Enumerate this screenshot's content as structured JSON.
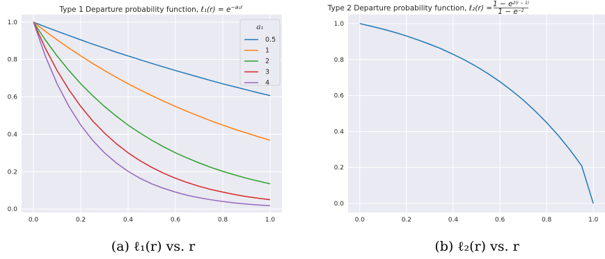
{
  "chart_data": [
    {
      "type": "line",
      "title": "Type 1 Departure probability function, ℓ₁(r) = e^(−a₁r)",
      "title_text": "Type 1 Departure probability function, ",
      "title_math": "ℓ₁(r) = e",
      "title_sup": "−a₁r",
      "xlabel": "",
      "ylabel": "",
      "xlim": [
        -0.05,
        1.05
      ],
      "ylim": [
        -0.018,
        1.04
      ],
      "xticks": [
        "0.0",
        "0.2",
        "0.4",
        "0.6",
        "0.8",
        "1.0"
      ],
      "yticks": [
        "0.0",
        "0.2",
        "0.4",
        "0.6",
        "0.8",
        "1.0"
      ],
      "grid": true,
      "legend": {
        "title": "a₁",
        "placement": "top-right"
      },
      "caption": "(a) ℓ₁(r) vs. r",
      "x": [
        0.0,
        0.05,
        0.1,
        0.15,
        0.2,
        0.25,
        0.3,
        0.35,
        0.4,
        0.45,
        0.5,
        0.55,
        0.6,
        0.65,
        0.7,
        0.75,
        0.8,
        0.85,
        0.9,
        0.95,
        1.0
      ],
      "series": [
        {
          "name": "0.5",
          "color": "#1f77b4",
          "values": [
            1.0,
            0.975,
            0.951,
            0.928,
            0.905,
            0.882,
            0.861,
            0.839,
            0.819,
            0.799,
            0.779,
            0.76,
            0.741,
            0.723,
            0.705,
            0.687,
            0.67,
            0.654,
            0.638,
            0.622,
            0.607
          ]
        },
        {
          "name": "1",
          "color": "#ff7f0e",
          "values": [
            1.0,
            0.951,
            0.905,
            0.861,
            0.819,
            0.779,
            0.741,
            0.705,
            0.67,
            0.638,
            0.607,
            0.577,
            0.549,
            0.522,
            0.497,
            0.472,
            0.449,
            0.427,
            0.407,
            0.387,
            0.368
          ]
        },
        {
          "name": "2",
          "color": "#2ca02c",
          "values": [
            1.0,
            0.905,
            0.819,
            0.741,
            0.67,
            0.607,
            0.549,
            0.497,
            0.449,
            0.407,
            0.368,
            0.333,
            0.301,
            0.273,
            0.247,
            0.223,
            0.202,
            0.183,
            0.165,
            0.15,
            0.135
          ]
        },
        {
          "name": "3",
          "color": "#d62728",
          "values": [
            1.0,
            0.861,
            0.741,
            0.638,
            0.549,
            0.472,
            0.407,
            0.35,
            0.301,
            0.259,
            0.223,
            0.192,
            0.165,
            0.142,
            0.122,
            0.105,
            0.091,
            0.078,
            0.067,
            0.058,
            0.05
          ]
        },
        {
          "name": "4",
          "color": "#9467bd",
          "values": [
            1.0,
            0.819,
            0.67,
            0.549,
            0.449,
            0.368,
            0.301,
            0.247,
            0.202,
            0.165,
            0.135,
            0.111,
            0.091,
            0.074,
            0.061,
            0.05,
            0.041,
            0.033,
            0.027,
            0.022,
            0.018
          ]
        }
      ]
    },
    {
      "type": "line",
      "title": "Type 2 Departure probability function, ℓ₂(r) = (1 − e^(2(r−1)))/(1 − e^(−2))",
      "title_text": "Type 2 Departure probability function, ",
      "title_math": "ℓ₂(r) = ",
      "title_num": "1 − e",
      "title_num_sup": "2(r − 1)",
      "title_den": "1 − e",
      "title_den_sup": "−2",
      "xlabel": "",
      "ylabel": "",
      "xlim": [
        -0.05,
        1.05
      ],
      "ylim": [
        -0.05,
        1.05
      ],
      "xticks": [
        "0.0",
        "0.2",
        "0.4",
        "0.6",
        "0.8",
        "1.0"
      ],
      "yticks": [
        "0.0",
        "0.2",
        "0.4",
        "0.6",
        "0.8",
        "1.0"
      ],
      "grid": true,
      "caption": "(b) ℓ₂(r) vs. r",
      "x": [
        0.0,
        0.05,
        0.1,
        0.15,
        0.2,
        0.25,
        0.3,
        0.35,
        0.4,
        0.45,
        0.5,
        0.55,
        0.6,
        0.65,
        0.7,
        0.75,
        0.8,
        0.85,
        0.9,
        0.95,
        1.0
      ],
      "series": [
        {
          "name": "",
          "color": "#1f77b4",
          "values": [
            1.0,
            0.985,
            0.969,
            0.951,
            0.931,
            0.909,
            0.885,
            0.859,
            0.829,
            0.797,
            0.761,
            0.721,
            0.677,
            0.628,
            0.575,
            0.515,
            0.45,
            0.378,
            0.298,
            0.21,
            0.0
          ]
        }
      ]
    }
  ]
}
